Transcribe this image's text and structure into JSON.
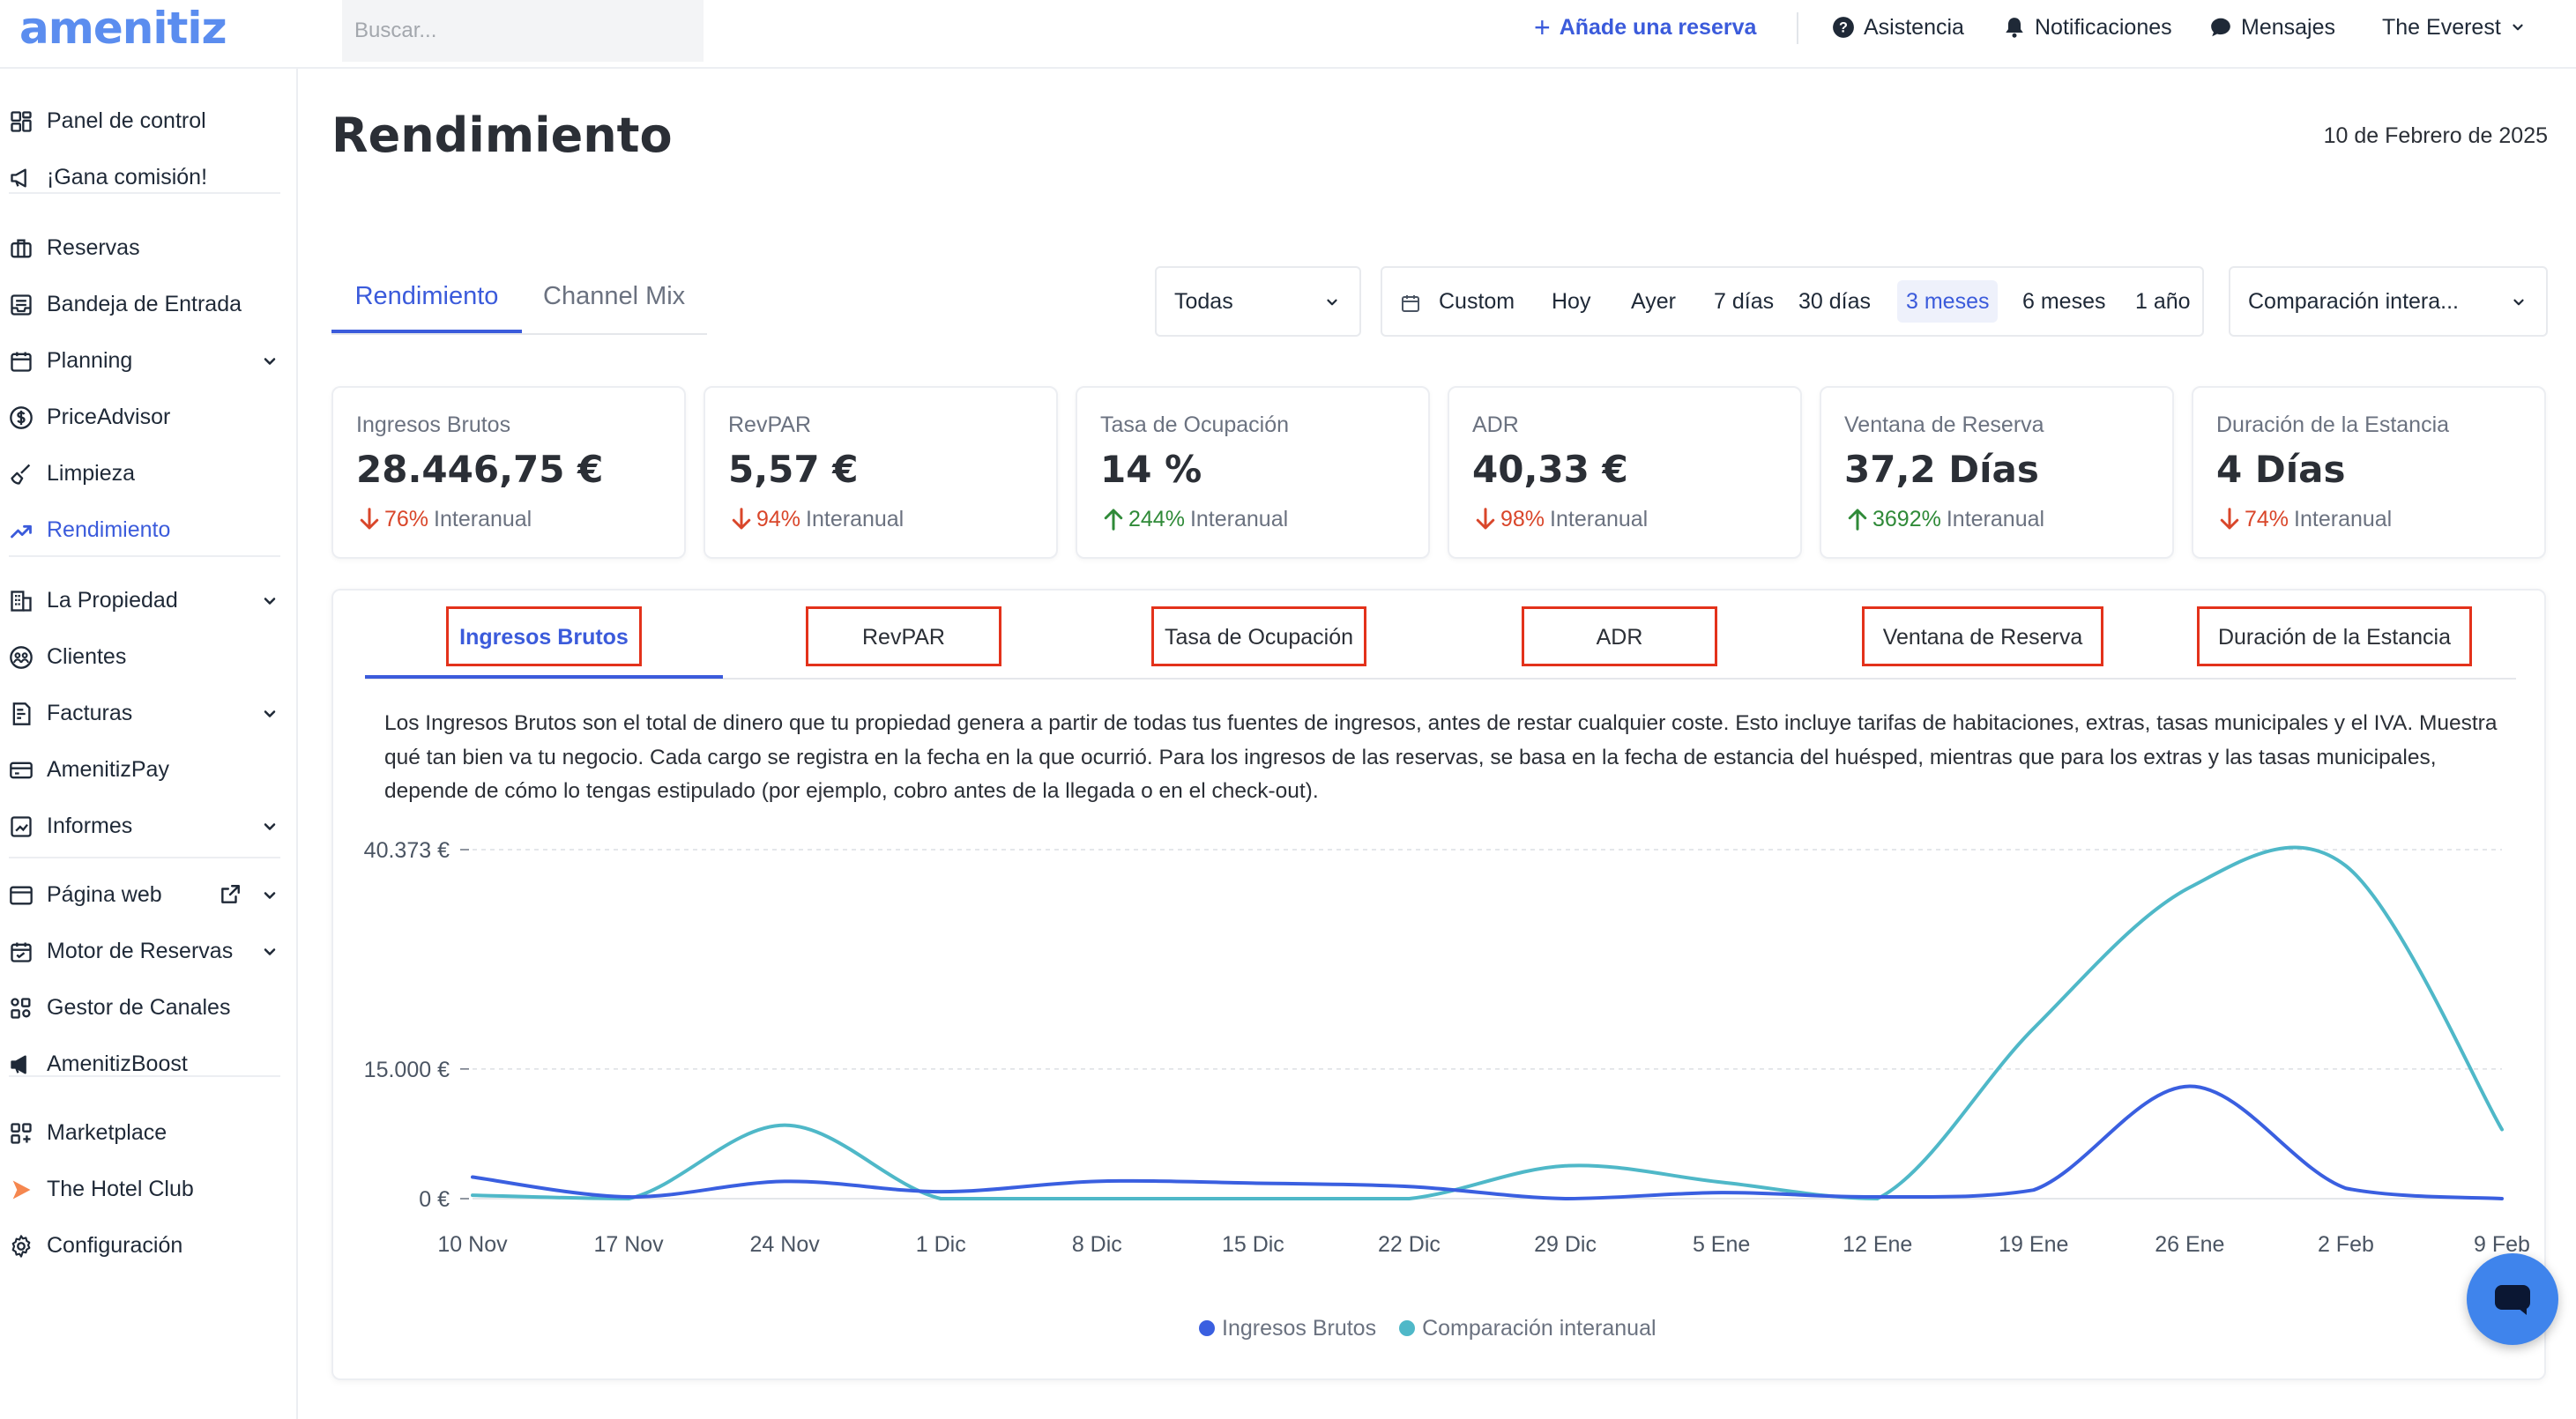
{
  "header": {
    "logo": "amenitiz",
    "search_placeholder": "Buscar...",
    "add_booking": "Añade una reserva",
    "help": "Asistencia",
    "notifications": "Notificaciones",
    "messages": "Mensajes",
    "property": "The Everest"
  },
  "sidebar": {
    "items": [
      {
        "label": "Panel de control",
        "icon": "dashboard-icon"
      },
      {
        "label": "¡Gana comisión!",
        "icon": "megaphone-icon"
      },
      {
        "label": "Reservas",
        "icon": "suitcase-icon"
      },
      {
        "label": "Bandeja de Entrada",
        "icon": "inbox-icon"
      },
      {
        "label": "Planning",
        "icon": "calendar-icon"
      },
      {
        "label": "PriceAdvisor",
        "icon": "dollar-icon"
      },
      {
        "label": "Limpieza",
        "icon": "broom-icon"
      },
      {
        "label": "Rendimiento",
        "icon": "trend-icon"
      },
      {
        "label": "La Propiedad",
        "icon": "building-icon"
      },
      {
        "label": "Clientes",
        "icon": "users-icon"
      },
      {
        "label": "Facturas",
        "icon": "invoice-icon"
      },
      {
        "label": "AmenitizPay",
        "icon": "card-icon"
      },
      {
        "label": "Informes",
        "icon": "report-icon"
      },
      {
        "label": "Página web",
        "icon": "browser-icon"
      },
      {
        "label": "Motor de Reservas",
        "icon": "booking-engine-icon"
      },
      {
        "label": "Gestor de Canales",
        "icon": "channels-icon"
      },
      {
        "label": "AmenitizBoost",
        "icon": "boost-icon"
      },
      {
        "label": "Marketplace",
        "icon": "marketplace-icon"
      },
      {
        "label": "The Hotel Club",
        "icon": "hotel-club-icon"
      },
      {
        "label": "Configuración",
        "icon": "gear-icon"
      }
    ],
    "active": "Rendimiento"
  },
  "page": {
    "title": "Rendimiento",
    "date": "10 de Febrero de 2025",
    "tabs": [
      "Rendimiento",
      "Channel Mix"
    ],
    "channel_filter": "Todas",
    "ranges": [
      "Custom",
      "Hoy",
      "Ayer",
      "7 días",
      "30 días",
      "3 meses",
      "6 meses",
      "1 año"
    ],
    "selected_range": "3 meses",
    "comparison": "Comparación intera..."
  },
  "kpis": [
    {
      "label": "Ingresos Brutos",
      "value": "28.446,75 €",
      "pct": "76%",
      "trend": "down",
      "yoy": "Interanual"
    },
    {
      "label": "RevPAR",
      "value": "5,57 €",
      "pct": "94%",
      "trend": "down",
      "yoy": "Interanual"
    },
    {
      "label": "Tasa de Ocupación",
      "value": "14 %",
      "pct": "244%",
      "trend": "up",
      "yoy": "Interanual"
    },
    {
      "label": "ADR",
      "value": "40,33 €",
      "pct": "98%",
      "trend": "down",
      "yoy": "Interanual"
    },
    {
      "label": "Ventana de Reserva",
      "value": "37,2 Días",
      "pct": "3692%",
      "trend": "up",
      "yoy": "Interanual"
    },
    {
      "label": "Duración de la Estancia",
      "value": "4 Días",
      "pct": "74%",
      "trend": "down",
      "yoy": "Interanual"
    }
  ],
  "metric_tabs": [
    "Ingresos Brutos",
    "RevPAR",
    "Tasa de Ocupación",
    "ADR",
    "Ventana de Reserva",
    "Duración de la Estancia"
  ],
  "description": "Los Ingresos Brutos son el total de dinero que tu propiedad genera a partir de todas tus fuentes de ingresos, antes de restar cualquier coste. Esto incluye tarifas de habitaciones, extras, tasas municipales y el IVA. Muestra qué tan bien va tu negocio. Cada cargo se registra en la fecha en la que ocurrió. Para los ingresos de las reservas, se basa en la fecha de estancia del huésped, mientras que para los extras y las tasas municipales, depende de cómo lo tengas estipulado (por ejemplo, cobro antes de la llegada o en el check-out).",
  "colors": {
    "accent": "#3b5bdb",
    "series_current": "#3a5fe0",
    "series_comparison": "#4fb8c8",
    "down": "#d9462a",
    "up": "#2f8a38",
    "highlight_box": "#e3321b"
  },
  "chart_data": {
    "type": "line",
    "x": [
      "10 Nov",
      "17 Nov",
      "24 Nov",
      "1 Dic",
      "8 Dic",
      "15 Dic",
      "22 Dic",
      "29 Dic",
      "5 Ene",
      "12 Ene",
      "19 Ene",
      "26 Ene",
      "2 Feb",
      "9 Feb"
    ],
    "y_ticks": [
      {
        "value": 40373,
        "label": "40.373 €"
      },
      {
        "value": 15000,
        "label": "15.000 €"
      },
      {
        "value": 0,
        "label": "0 €"
      }
    ],
    "ylim": [
      0,
      40373
    ],
    "grid": true,
    "legend_position": "bottom-center",
    "series": [
      {
        "name": "Ingresos Brutos",
        "color": "#3a5fe0",
        "values": [
          2500,
          200,
          2000,
          800,
          2000,
          1800,
          1400,
          0,
          700,
          200,
          1000,
          13000,
          1200,
          0
        ]
      },
      {
        "name": "Comparación interanual",
        "color": "#4fb8c8",
        "values": [
          400,
          0,
          8500,
          0,
          0,
          0,
          0,
          3800,
          1900,
          0,
          19700,
          36000,
          38500,
          8000
        ]
      }
    ]
  }
}
